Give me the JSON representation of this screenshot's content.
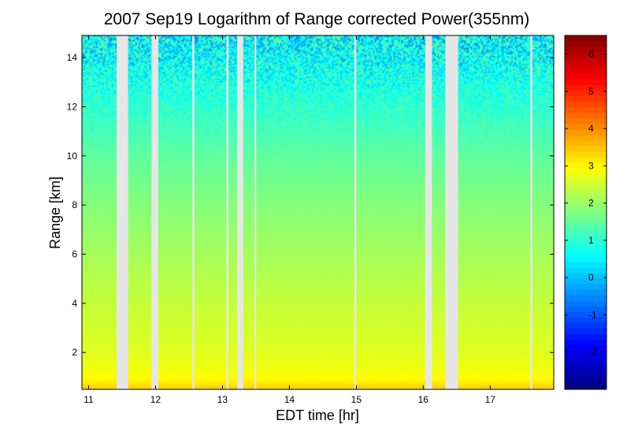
{
  "chart_data": {
    "type": "heatmap",
    "title": "2007 Sep19  Logarithm of Range corrected Power(355nm)",
    "xlabel": "EDT time [hr]",
    "ylabel": "Range [km]",
    "xlim": [
      10.9,
      17.95
    ],
    "ylim": [
      0.5,
      14.9
    ],
    "xticks": [
      "11",
      "12",
      "13",
      "14",
      "15",
      "16",
      "17"
    ],
    "yticks": [
      "2",
      "4",
      "6",
      "8",
      "10",
      "12",
      "14"
    ],
    "colorbar": {
      "range": [
        -3,
        6.5
      ],
      "ticks": [
        "-2",
        "-1",
        "0",
        "1",
        "2",
        "3",
        "4",
        "5",
        "6"
      ],
      "colormap": "jet"
    },
    "value_profile": {
      "range_km": [
        0.5,
        1,
        2,
        4,
        6,
        8,
        10,
        12,
        14,
        14.9
      ],
      "log_power": [
        3.4,
        2.9,
        2.65,
        2.4,
        2.1,
        1.8,
        1.45,
        1.0,
        0.6,
        0.5
      ]
    },
    "data_gaps_hours": [
      [
        11.42,
        11.59
      ],
      [
        11.94,
        12.04
      ],
      [
        12.55,
        12.58
      ],
      [
        13.06,
        13.09
      ],
      [
        13.22,
        13.31
      ],
      [
        13.48,
        13.5
      ],
      [
        14.97,
        15.0
      ],
      [
        16.03,
        16.13
      ],
      [
        16.33,
        16.52
      ],
      [
        17.6,
        17.63
      ]
    ]
  },
  "colors": {
    "gap": "#e6e6e6",
    "background": "#ffffff"
  }
}
